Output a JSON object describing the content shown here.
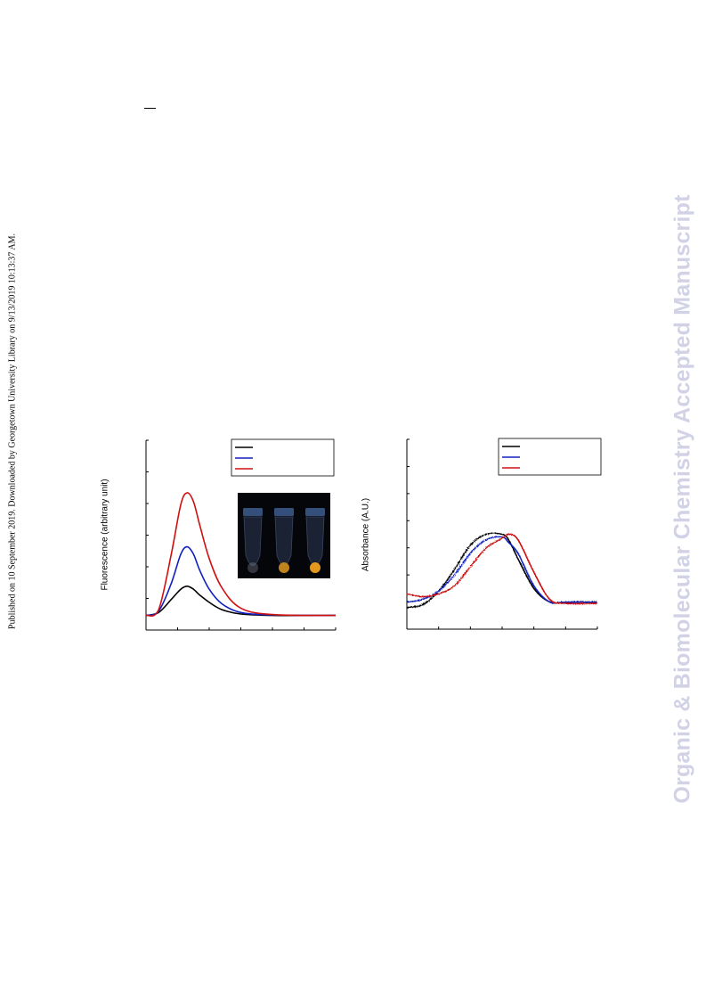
{
  "page": {
    "side_note": "Published on 10 September 2019. Downloaded by Georgetown University Library on 9/13/2019 10:13:37 AM.",
    "watermark": "Organic & Biomolecular Chemistry Accepted Manuscript"
  },
  "chart_data": [
    {
      "type": "line",
      "ylabel": "Fluorescence (arbitrary unit)",
      "xlim": [
        0,
        6
      ],
      "ylim": [
        0,
        6.5
      ],
      "legend": {
        "placement": "top-right",
        "labels": [
          "",
          "",
          ""
        ]
      },
      "inset": {
        "kind": "photo",
        "tubes": 3,
        "tube_colors": [
          "#8a8fa0",
          "#c88a1e",
          "#f0a020"
        ]
      },
      "series": [
        {
          "color": "#000000",
          "x": [
            0,
            0.4,
            0.8,
            1.1,
            1.3,
            1.5,
            1.7,
            2.0,
            2.4,
            3.0,
            4.0,
            6.0
          ],
          "values": [
            0.5,
            0.6,
            1.05,
            1.4,
            1.5,
            1.4,
            1.2,
            0.95,
            0.7,
            0.55,
            0.5,
            0.5
          ]
        },
        {
          "color": "#1020c0",
          "x": [
            0,
            0.4,
            0.8,
            1.1,
            1.3,
            1.5,
            1.7,
            2.0,
            2.4,
            3.0,
            4.0,
            6.0
          ],
          "values": [
            0.5,
            0.65,
            1.6,
            2.6,
            2.85,
            2.6,
            2.05,
            1.4,
            0.9,
            0.6,
            0.52,
            0.5
          ]
        },
        {
          "color": "#d01010",
          "x": [
            0,
            0.4,
            0.8,
            1.1,
            1.3,
            1.5,
            1.7,
            2.0,
            2.4,
            3.0,
            4.0,
            6.0
          ],
          "values": [
            0.5,
            0.7,
            2.6,
            4.3,
            4.7,
            4.4,
            3.6,
            2.45,
            1.45,
            0.75,
            0.53,
            0.5
          ]
        }
      ]
    },
    {
      "type": "line",
      "ylabel": "Absorbance (A.U.)",
      "xlim": [
        0,
        6
      ],
      "ylim": [
        0,
        7
      ],
      "legend": {
        "placement": "top-right",
        "labels": [
          "",
          "",
          ""
        ]
      },
      "series": [
        {
          "color": "#000000",
          "x": [
            0,
            0.5,
            1.0,
            1.5,
            2.0,
            2.5,
            3.0,
            3.2,
            3.5,
            4.0,
            4.5,
            5.0,
            6.0
          ],
          "values": [
            0.8,
            0.9,
            1.4,
            2.2,
            3.1,
            3.5,
            3.5,
            3.3,
            2.6,
            1.5,
            1.0,
            1.0,
            1.0
          ]
        },
        {
          "color": "#1020c0",
          "x": [
            0,
            0.5,
            1.0,
            1.5,
            2.0,
            2.5,
            3.0,
            3.2,
            3.5,
            4.0,
            4.5,
            5.0,
            6.0
          ],
          "values": [
            1.0,
            1.1,
            1.4,
            2.0,
            2.8,
            3.3,
            3.4,
            3.2,
            2.8,
            1.6,
            1.0,
            1.0,
            1.0
          ]
        },
        {
          "color": "#d01010",
          "x": [
            0,
            0.5,
            1.0,
            1.5,
            2.0,
            2.5,
            3.0,
            3.2,
            3.5,
            4.0,
            4.5,
            5.0,
            6.0
          ],
          "values": [
            1.3,
            1.2,
            1.3,
            1.6,
            2.3,
            3.0,
            3.35,
            3.5,
            3.3,
            2.1,
            1.1,
            0.95,
            0.95
          ]
        }
      ]
    }
  ]
}
